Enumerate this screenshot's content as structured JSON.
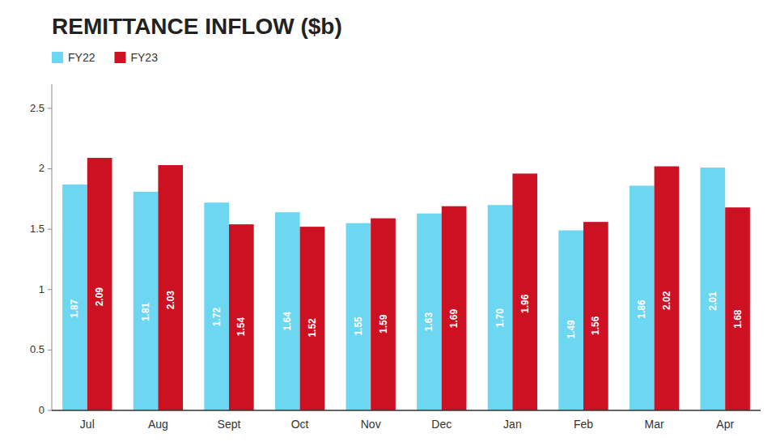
{
  "chart_data": {
    "type": "bar",
    "title": "REMITTANCE INFLOW ($b)",
    "categories": [
      "Jul",
      "Aug",
      "Sept",
      "Oct",
      "Nov",
      "Dec",
      "Jan",
      "Feb",
      "Mar",
      "Apr"
    ],
    "series": [
      {
        "name": "FY22",
        "color": "#6DD6F0",
        "values": [
          1.87,
          1.81,
          1.72,
          1.64,
          1.55,
          1.63,
          1.7,
          1.49,
          1.86,
          2.01
        ],
        "value_labels": [
          "1.87",
          "1.81",
          "1.72",
          "1.64",
          "1.55",
          "1.63",
          "1.70",
          "1.49",
          "1.86",
          "2.01"
        ]
      },
      {
        "name": "FY23",
        "color": "#CC1122",
        "values": [
          2.09,
          2.03,
          1.54,
          1.52,
          1.59,
          1.69,
          1.96,
          1.56,
          2.02,
          1.68
        ],
        "value_labels": [
          "2.09",
          "2.03",
          "1.54",
          "1.52",
          "1.59",
          "1.69",
          "1.96",
          "1.56",
          "2.02",
          "1.68"
        ]
      }
    ],
    "ylim": [
      0,
      2.7
    ],
    "yticks": [
      0,
      0.5,
      1,
      1.5,
      2,
      2.5
    ],
    "grid": false,
    "legend": "top-left",
    "data_labels": true
  }
}
